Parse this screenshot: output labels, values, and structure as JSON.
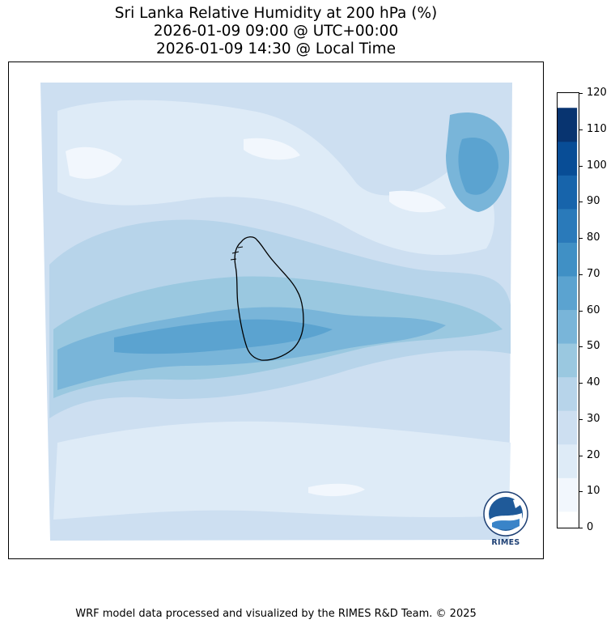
{
  "title": {
    "line1": "Sri Lanka Relative Humidity at 200 hPa (%)",
    "line2": "2026-01-09 09:00 @ UTC+00:00",
    "line3": "2026-01-09 14:30 @ Local Time"
  },
  "colorbar": {
    "ticks": [
      "0",
      "10",
      "20",
      "30",
      "40",
      "50",
      "60",
      "70",
      "80",
      "90",
      "100",
      "110",
      "120"
    ],
    "colors": [
      "#f2f7fd",
      "#deebf7",
      "#cddff1",
      "#b7d4ea",
      "#9ac8e0",
      "#79b5d9",
      "#5ba3d0",
      "#4090c5",
      "#2a7aba",
      "#1764ab",
      "#084d96",
      "#083470"
    ]
  },
  "logo": {
    "text": "RIMES"
  },
  "footer": "WRF model data processed and visualized by the RIMES R&D Team. © 2025"
}
